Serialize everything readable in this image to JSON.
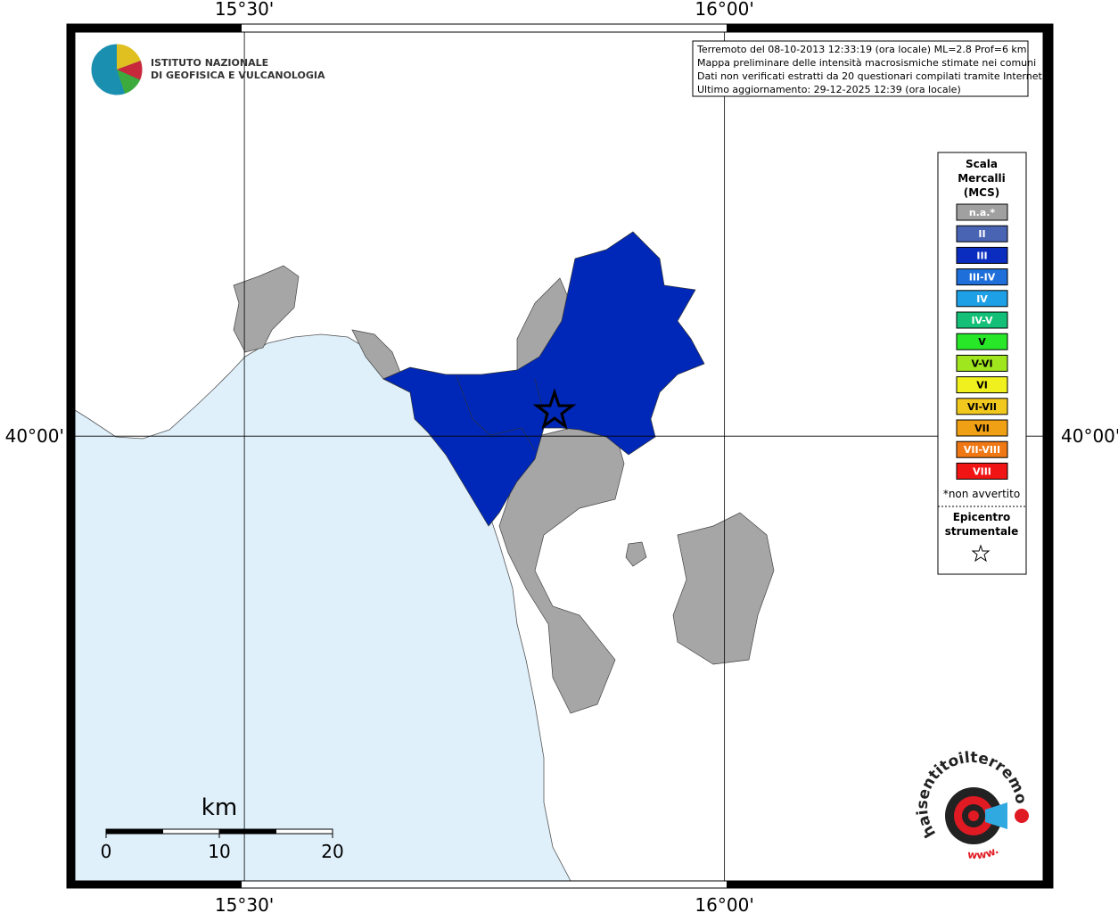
{
  "map": {
    "lonlim": [
      15.3235,
      16.3318
    ],
    "latlim": [
      39.645,
      40.3225
    ],
    "lon_grid": [
      {
        "value": 15.5,
        "label": "15°30'"
      },
      {
        "value": 16,
        "label": "16°00'"
      }
    ],
    "lat_grid": [
      {
        "value": 40,
        "label": "40°00'"
      }
    ]
  },
  "institute": {
    "line1": "ISTITUTO NAZIONALE",
    "line2": "DI GEOFISICA E VULCANOLOGIA"
  },
  "info": [
    "Terremoto del 08-10-2013 12:33:19 (ora locale) ML=2.8 Prof=6 km",
    "Mappa preliminare delle intensità macrosismiche stimate nei comuni",
    "Dati non verificati estratti da 20 questionari compilati tramite Internet.",
    "Ultimo aggiornamento: 29-12-2025 12:39 (ora locale)"
  ],
  "legend": {
    "title": [
      "Scala",
      "Mercalli",
      "(MCS)"
    ],
    "items": [
      {
        "label": "n.a.*",
        "color": "#a0a0a0"
      },
      {
        "label": "II",
        "color": "#4a64b4"
      },
      {
        "label": "III",
        "color": "#0a2dc0"
      },
      {
        "label": "III-IV",
        "color": "#1e6fd9"
      },
      {
        "label": "IV",
        "color": "#1ea0e6"
      },
      {
        "label": "IV-V",
        "color": "#14c078"
      },
      {
        "label": "V",
        "color": "#28e628"
      },
      {
        "label": "V-VI",
        "color": "#a0e61e"
      },
      {
        "label": "VI",
        "color": "#f0f01e"
      },
      {
        "label": "VI-VII",
        "color": "#f0c81e"
      },
      {
        "label": "VII",
        "color": "#f0a014"
      },
      {
        "label": "VII-VIII",
        "color": "#f07814"
      },
      {
        "label": "VIII",
        "color": "#f01414"
      }
    ],
    "note": "*non avvertito",
    "epicenter": [
      "Epicentro",
      "strumentale"
    ]
  },
  "scale_bar": {
    "unit": "km",
    "ticks": [
      0,
      10,
      20
    ]
  },
  "site_logo": {
    "name": "haisentitoilterremoto.it",
    "prefix": "www."
  }
}
